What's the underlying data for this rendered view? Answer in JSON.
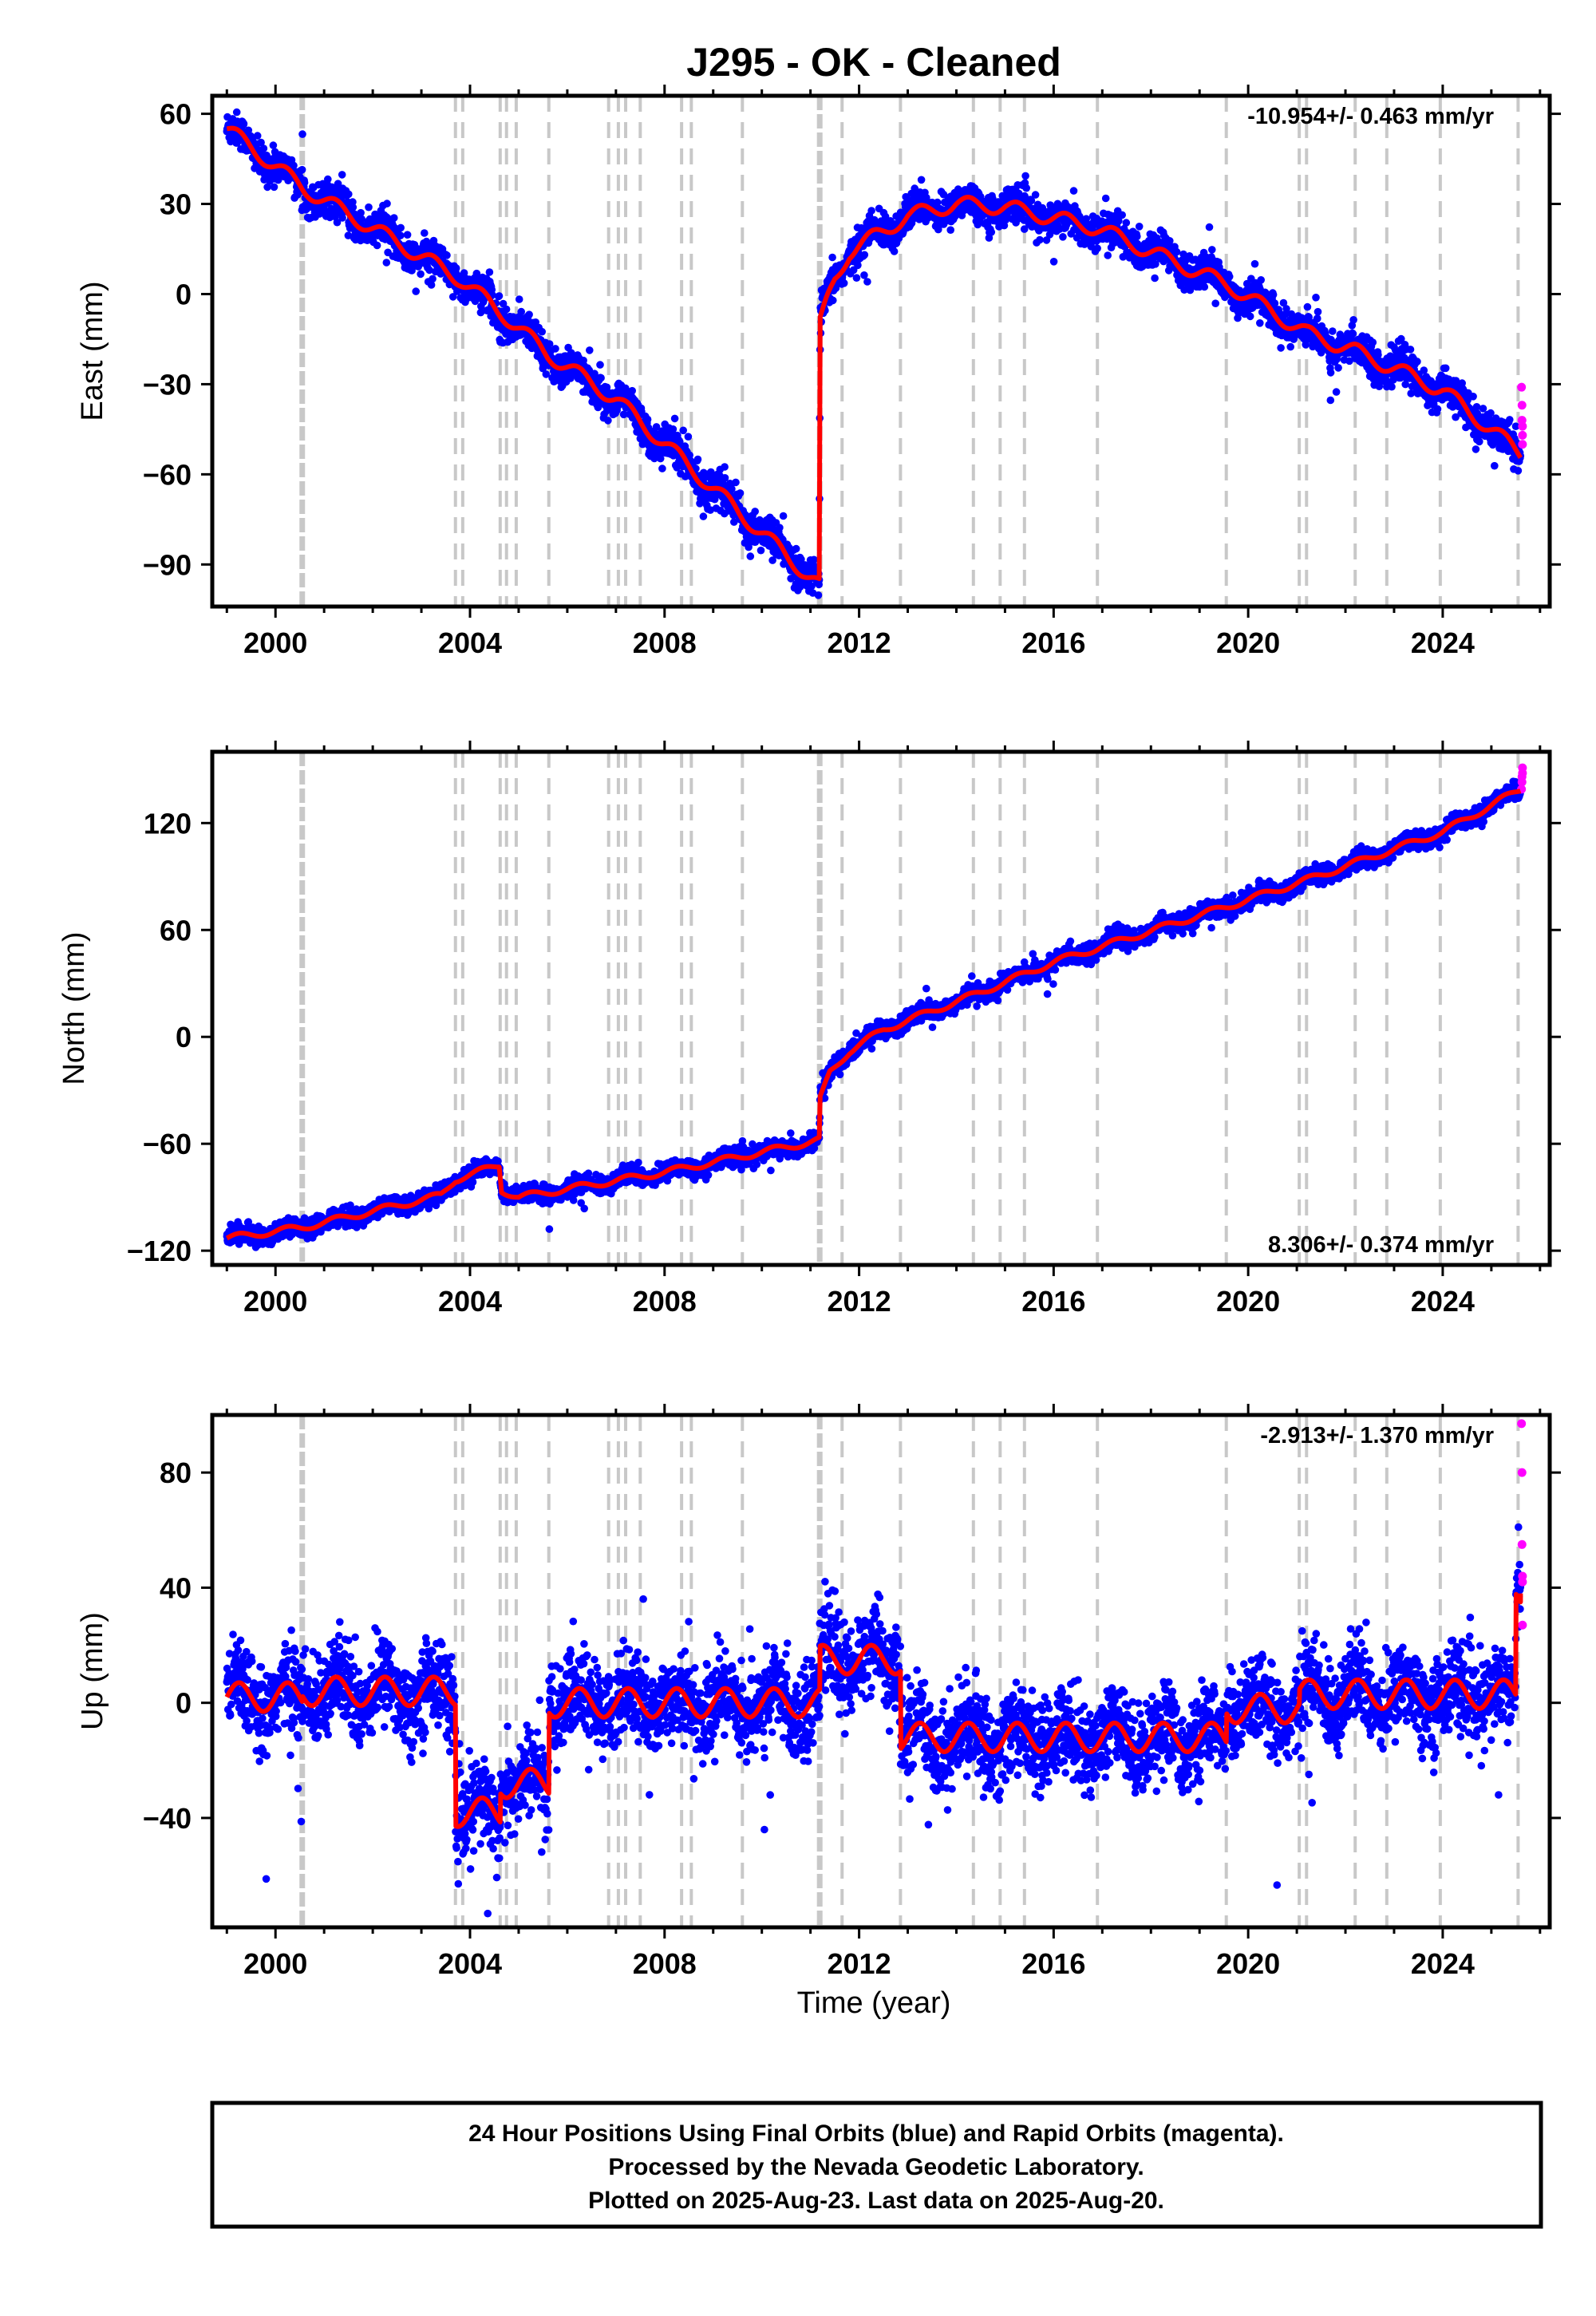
{
  "figure": {
    "title": "J295  - OK - Cleaned",
    "xlabel": "Time (year)",
    "xticks": [
      2000,
      2004,
      2008,
      2012,
      2016,
      2020,
      2024
    ],
    "xlim": [
      1998.7,
      2026.2
    ],
    "event_lines": [
      {
        "t": 2000.55,
        "style": "dense"
      },
      {
        "t": 2003.7,
        "style": "dash"
      },
      {
        "t": 2003.85,
        "style": "dash"
      },
      {
        "t": 2004.62,
        "style": "dash"
      },
      {
        "t": 2004.75,
        "style": "dash"
      },
      {
        "t": 2004.95,
        "style": "dash"
      },
      {
        "t": 2005.62,
        "style": "dash"
      },
      {
        "t": 2006.85,
        "style": "dash"
      },
      {
        "t": 2007.05,
        "style": "dash"
      },
      {
        "t": 2007.2,
        "style": "dash"
      },
      {
        "t": 2007.5,
        "style": "dash"
      },
      {
        "t": 2008.35,
        "style": "dash"
      },
      {
        "t": 2008.55,
        "style": "dash"
      },
      {
        "t": 2009.6,
        "style": "dash"
      },
      {
        "t": 2011.19,
        "style": "dense"
      },
      {
        "t": 2011.65,
        "style": "dash"
      },
      {
        "t": 2012.85,
        "style": "dash"
      },
      {
        "t": 2014.35,
        "style": "dash"
      },
      {
        "t": 2014.9,
        "style": "dash"
      },
      {
        "t": 2015.4,
        "style": "dash"
      },
      {
        "t": 2016.9,
        "style": "dash"
      },
      {
        "t": 2019.55,
        "style": "dash"
      },
      {
        "t": 2021.05,
        "style": "dash"
      },
      {
        "t": 2021.2,
        "style": "dash"
      },
      {
        "t": 2022.2,
        "style": "dash"
      },
      {
        "t": 2022.85,
        "style": "dash"
      },
      {
        "t": 2023.95,
        "style": "dash"
      },
      {
        "t": 2025.55,
        "style": "dash"
      }
    ]
  },
  "panels": [
    {
      "id": "east",
      "ylabel": "East (mm)",
      "yticks": [
        60,
        30,
        0,
        -30,
        -60,
        -90
      ],
      "tick_labels": [
        "60",
        "30",
        "0",
        "−30",
        "−60",
        "−90"
      ],
      "ylim": [
        -104,
        66
      ],
      "rate_text": "-10.954+/- 0.463 mm/yr",
      "rate_position": "top-right"
    },
    {
      "id": "north",
      "ylabel": "North (mm)",
      "yticks": [
        120,
        60,
        0,
        -60,
        -120
      ],
      "tick_labels": [
        "120",
        "60",
        "0",
        "−60",
        "−120"
      ],
      "ylim": [
        -128,
        160
      ],
      "rate_text": "8.306+/- 0.374 mm/yr",
      "rate_position": "bottom-right"
    },
    {
      "id": "up",
      "ylabel": "Up (mm)",
      "yticks": [
        80,
        40,
        0,
        -40
      ],
      "tick_labels": [
        "80",
        "40",
        "0",
        "−40"
      ],
      "ylim": [
        -78,
        100
      ],
      "rate_text": "-2.913+/- 1.370 mm/yr",
      "rate_position": "top-right"
    }
  ],
  "chart_data": [
    {
      "type": "scatter",
      "panel": "east",
      "series": [
        {
          "kind": "final_orbits",
          "color": "#0000ff"
        },
        {
          "kind": "rapid_orbits",
          "color": "#ff00ff"
        },
        {
          "kind": "model",
          "color": "#ff0000"
        }
      ],
      "model_breakpoints": [
        [
          1999.0,
          55
        ],
        [
          2000.6,
          35
        ],
        [
          2003.8,
          5
        ],
        [
          2004.7,
          -7
        ],
        [
          2005.6,
          -20
        ],
        [
          2007.0,
          -35
        ],
        [
          2011.18,
          -97
        ],
        [
          2011.2,
          -10
        ],
        [
          2011.35,
          -2
        ],
        [
          2011.5,
          5
        ],
        [
          2011.8,
          14
        ],
        [
          2012.3,
          19
        ],
        [
          2013.0,
          26
        ],
        [
          2014.0,
          30
        ],
        [
          2015.0,
          29
        ],
        [
          2016.9,
          22
        ],
        [
          2018.0,
          14
        ],
        [
          2019.6,
          3
        ],
        [
          2021.2,
          -13
        ],
        [
          2022.2,
          -19
        ],
        [
          2024.0,
          -32
        ],
        [
          2025.6,
          -53
        ]
      ],
      "seasonal_amplitude": 2.5,
      "scatter_sd": 2.8,
      "rapid_points": [
        [
          2025.62,
          -31
        ],
        [
          2025.63,
          -37
        ],
        [
          2025.63,
          -42
        ],
        [
          2025.64,
          -44
        ],
        [
          2025.64,
          -47
        ],
        [
          2025.64,
          -50
        ]
      ]
    },
    {
      "type": "scatter",
      "panel": "north",
      "series": [
        {
          "kind": "final_orbits",
          "color": "#0000ff"
        },
        {
          "kind": "rapid_orbits",
          "color": "#ff00ff"
        },
        {
          "kind": "model",
          "color": "#ff0000"
        }
      ],
      "model_breakpoints": [
        [
          1999.0,
          -113
        ],
        [
          2000.55,
          -107
        ],
        [
          2003.4,
          -89
        ],
        [
          2003.7,
          -80
        ],
        [
          2004.6,
          -72
        ],
        [
          2004.65,
          -86
        ],
        [
          2005.0,
          -90
        ],
        [
          2008.0,
          -76
        ],
        [
          2011.18,
          -58
        ],
        [
          2011.2,
          -35
        ],
        [
          2011.4,
          -20
        ],
        [
          2011.8,
          -8
        ],
        [
          2012.5,
          4
        ],
        [
          2014.5,
          25
        ],
        [
          2016.0,
          42
        ],
        [
          2019.55,
          73
        ],
        [
          2021.2,
          88
        ],
        [
          2024.0,
          115
        ],
        [
          2025.6,
          139
        ]
      ],
      "seasonal_amplitude": 1.8,
      "scatter_sd": 2.5,
      "rapid_points": [
        [
          2025.62,
          139
        ],
        [
          2025.63,
          143
        ],
        [
          2025.63,
          146
        ],
        [
          2025.64,
          148
        ],
        [
          2025.64,
          151
        ]
      ]
    },
    {
      "type": "scatter",
      "panel": "up",
      "series": [
        {
          "kind": "final_orbits",
          "color": "#0000ff"
        },
        {
          "kind": "rapid_orbits",
          "color": "#ff00ff"
        },
        {
          "kind": "model",
          "color": "#ff0000"
        }
      ],
      "model_steps": [
        [
          1999.0,
          2000.55,
          2
        ],
        [
          2000.55,
          2003.7,
          4
        ],
        [
          2003.7,
          2004.62,
          -38
        ],
        [
          2004.62,
          2005.62,
          -28
        ],
        [
          2005.62,
          2011.19,
          0
        ],
        [
          2011.19,
          2012.85,
          15
        ],
        [
          2012.85,
          2019.55,
          -12
        ],
        [
          2019.55,
          2021.05,
          -2
        ],
        [
          2021.05,
          2025.5,
          3
        ],
        [
          2025.5,
          2025.6,
          38
        ]
      ],
      "seasonal_amplitude": 5,
      "scatter_sd": 7.5,
      "rapid_points": [
        [
          2025.62,
          97
        ],
        [
          2025.63,
          80
        ],
        [
          2025.63,
          55
        ],
        [
          2025.64,
          44
        ],
        [
          2025.64,
          42
        ],
        [
          2025.64,
          27
        ]
      ]
    }
  ],
  "caption": {
    "lines": [
      "24 Hour Positions Using Final Orbits (blue) and Rapid Orbits (magenta).",
      "Processed by the Nevada Geodetic Laboratory.",
      "Plotted on 2025-Aug-23. Last data on 2025-Aug-20."
    ]
  }
}
